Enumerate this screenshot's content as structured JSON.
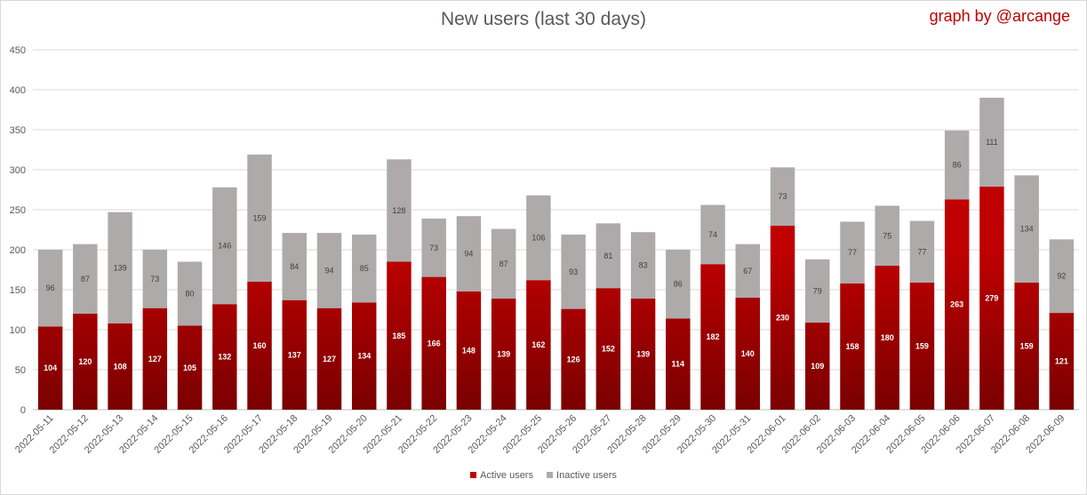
{
  "chart_data": {
    "type": "bar",
    "stacked": true,
    "title": "New users (last 30 days)",
    "credit": "graph by @arcange",
    "ylim": [
      0,
      450
    ],
    "yticks": [
      0,
      50,
      100,
      150,
      200,
      250,
      300,
      350,
      400,
      450
    ],
    "grid": true,
    "legend_position": "bottom",
    "categories": [
      "2022-05-11",
      "2022-05-12",
      "2022-05-13",
      "2022-05-14",
      "2022-05-15",
      "2022-05-16",
      "2022-05-17",
      "2022-05-18",
      "2022-05-19",
      "2022-05-20",
      "2022-05-21",
      "2022-05-22",
      "2022-05-23",
      "2022-05-24",
      "2022-05-25",
      "2022-05-26",
      "2022-05-27",
      "2022-05-28",
      "2022-05-29",
      "2022-05-30",
      "2022-05-31",
      "2022-06-01",
      "2022-06-02",
      "2022-06-03",
      "2022-06-04",
      "2022-06-05",
      "2022-06-06",
      "2022-06-07",
      "2022-06-08",
      "2022-06-09"
    ],
    "series": [
      {
        "name": "Active users",
        "color": "#c00000",
        "values": [
          104,
          120,
          108,
          127,
          105,
          132,
          160,
          137,
          127,
          134,
          185,
          166,
          148,
          139,
          162,
          126,
          152,
          139,
          114,
          182,
          140,
          230,
          109,
          158,
          180,
          159,
          263,
          279,
          159,
          121
        ]
      },
      {
        "name": "Inactive users",
        "color": "#aeaaaa",
        "values": [
          96,
          87,
          139,
          73,
          80,
          146,
          159,
          84,
          94,
          85,
          128,
          73,
          94,
          87,
          106,
          93,
          81,
          83,
          86,
          74,
          67,
          73,
          79,
          77,
          75,
          77,
          86,
          111,
          134,
          92
        ]
      }
    ]
  }
}
